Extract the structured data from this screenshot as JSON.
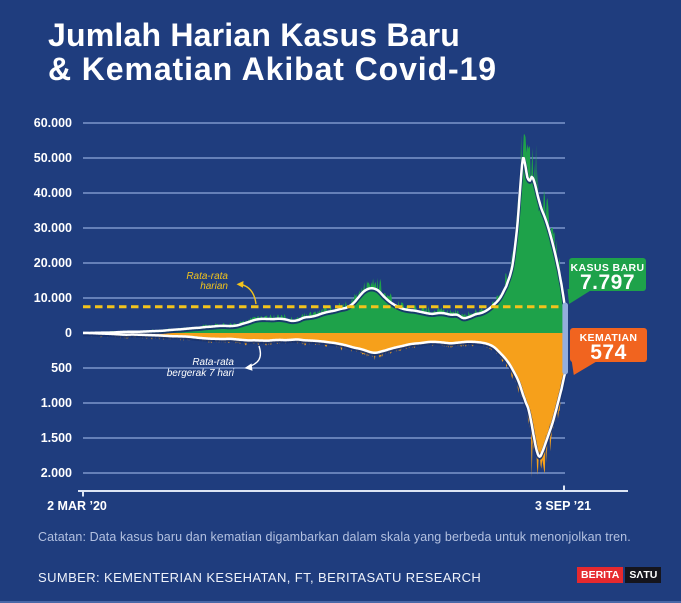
{
  "title": {
    "line1": "Jumlah Harian Kasus Baru",
    "line2": "& Kematian Akibat Covid-19"
  },
  "note": "Catatan: Data kasus baru dan kematian digambarkan dalam skala yang berbeda untuk menonjolkan tren.",
  "source": "SUMBER: KEMENTERIAN KESEHATAN, FT, BERITASATU RESEARCH",
  "logo": {
    "part1": "BERITA",
    "part2": "SΛTU"
  },
  "chart_data": {
    "type": "area",
    "x_axis": {
      "start_label": "2 MAR ’20",
      "end_label": "3 SEP ’21",
      "days": 550
    },
    "zero_label": "0",
    "colors": {
      "background": "#1f3d7e",
      "grid": "#8fa9da",
      "avg_line": "#ffffff",
      "line_shadow": "#16316e",
      "dashed": "#f2c31c",
      "marker_bar": "#93aedd"
    },
    "daily_average": {
      "value": 7500,
      "label_line1": "Rata-rata",
      "label_line2": "harian"
    },
    "moving_average_label": {
      "line1": "Rata-rata",
      "line2": "bergerak 7 hari"
    },
    "cases": {
      "label": "KASUS BARU",
      "final_display": "7.797",
      "final_value": 7797,
      "color": "#1ea24a",
      "box_color": "#1ea24a",
      "axis_max": 60000,
      "axis_ticks": [
        {
          "v": 60000,
          "label": "60.000"
        },
        {
          "v": 50000,
          "label": "50.000"
        },
        {
          "v": 40000,
          "label": "40.000"
        },
        {
          "v": 30000,
          "label": "30.000"
        },
        {
          "v": 20000,
          "label": "20.000"
        },
        {
          "v": 10000,
          "label": "10.000"
        }
      ],
      "record_daily": {
        "day": 500,
        "value": 56757
      },
      "avg_points": [
        [
          0,
          2
        ],
        [
          7,
          12
        ],
        [
          14,
          60
        ],
        [
          21,
          95
        ],
        [
          28,
          110
        ],
        [
          35,
          160
        ],
        [
          42,
          260
        ],
        [
          49,
          330
        ],
        [
          56,
          335
        ],
        [
          63,
          355
        ],
        [
          70,
          430
        ],
        [
          77,
          510
        ],
        [
          84,
          570
        ],
        [
          91,
          640
        ],
        [
          98,
          820
        ],
        [
          105,
          960
        ],
        [
          112,
          1060
        ],
        [
          119,
          1260
        ],
        [
          126,
          1420
        ],
        [
          133,
          1520
        ],
        [
          140,
          1720
        ],
        [
          147,
          1820
        ],
        [
          154,
          1960
        ],
        [
          161,
          2060
        ],
        [
          168,
          2010
        ],
        [
          175,
          2160
        ],
        [
          182,
          2620
        ],
        [
          189,
          3120
        ],
        [
          196,
          3720
        ],
        [
          203,
          4020
        ],
        [
          210,
          4060
        ],
        [
          217,
          3920
        ],
        [
          224,
          4010
        ],
        [
          231,
          3820
        ],
        [
          238,
          3420
        ],
        [
          245,
          3620
        ],
        [
          252,
          4320
        ],
        [
          259,
          4620
        ],
        [
          266,
          5020
        ],
        [
          273,
          5620
        ],
        [
          280,
          6120
        ],
        [
          287,
          6520
        ],
        [
          294,
          6920
        ],
        [
          301,
          7320
        ],
        [
          308,
          8520
        ],
        [
          315,
          10320
        ],
        [
          322,
          12020
        ],
        [
          329,
          12820
        ],
        [
          336,
          12220
        ],
        [
          343,
          10420
        ],
        [
          350,
          8920
        ],
        [
          357,
          7820
        ],
        [
          364,
          7020
        ],
        [
          371,
          6620
        ],
        [
          378,
          6420
        ],
        [
          385,
          6020
        ],
        [
          392,
          5720
        ],
        [
          399,
          5520
        ],
        [
          406,
          5620
        ],
        [
          413,
          5620
        ],
        [
          420,
          5320
        ],
        [
          427,
          5120
        ],
        [
          434,
          4220
        ],
        [
          441,
          4620
        ],
        [
          448,
          5320
        ],
        [
          455,
          5720
        ],
        [
          462,
          6620
        ],
        [
          469,
          8120
        ],
        [
          476,
          10120
        ],
        [
          483,
          13620
        ],
        [
          487,
          16500
        ],
        [
          490,
          19500
        ],
        [
          493,
          25000
        ],
        [
          496,
          32000
        ],
        [
          499,
          42000
        ],
        [
          502,
          50000
        ],
        [
          505,
          47500
        ],
        [
          507,
          44500
        ],
        [
          510,
          43500
        ],
        [
          512,
          44500
        ],
        [
          515,
          43000
        ],
        [
          519,
          39000
        ],
        [
          523,
          35500
        ],
        [
          527,
          33000
        ],
        [
          531,
          30000
        ],
        [
          535,
          26500
        ],
        [
          539,
          22500
        ],
        [
          543,
          18000
        ],
        [
          546,
          14000
        ],
        [
          548,
          10800
        ],
        [
          550,
          7797
        ]
      ]
    },
    "deaths": {
      "label": "KEMATIAN",
      "final_display": "574",
      "final_value": 574,
      "color": "#f6a01b",
      "box_color": "#f1641f",
      "axis_max": 2000,
      "axis_ticks": [
        {
          "v": 500,
          "label": "500"
        },
        {
          "v": 1000,
          "label": "1.000"
        },
        {
          "v": 1500,
          "label": "1.500"
        },
        {
          "v": 2000,
          "label": "2.000"
        }
      ],
      "record_daily": {
        "day": 512,
        "value": 2069
      },
      "avg_points": [
        [
          0,
          0
        ],
        [
          7,
          1
        ],
        [
          14,
          4
        ],
        [
          21,
          8
        ],
        [
          28,
          11
        ],
        [
          35,
          15
        ],
        [
          42,
          20
        ],
        [
          49,
          24
        ],
        [
          56,
          22
        ],
        [
          63,
          24
        ],
        [
          70,
          27
        ],
        [
          77,
          30
        ],
        [
          84,
          33
        ],
        [
          91,
          37
        ],
        [
          98,
          43
        ],
        [
          105,
          47
        ],
        [
          112,
          49
        ],
        [
          119,
          53
        ],
        [
          126,
          61
        ],
        [
          133,
          69
        ],
        [
          140,
          76
        ],
        [
          147,
          81
        ],
        [
          154,
          83
        ],
        [
          161,
          87
        ],
        [
          168,
          85
        ],
        [
          175,
          91
        ],
        [
          182,
          99
        ],
        [
          189,
          105
        ],
        [
          196,
          103
        ],
        [
          203,
          107
        ],
        [
          210,
          111
        ],
        [
          217,
          103
        ],
        [
          224,
          99
        ],
        [
          231,
          101
        ],
        [
          238,
          97
        ],
        [
          245,
          93
        ],
        [
          252,
          101
        ],
        [
          259,
          107
        ],
        [
          266,
          113
        ],
        [
          273,
          123
        ],
        [
          280,
          133
        ],
        [
          287,
          143
        ],
        [
          294,
          159
        ],
        [
          301,
          179
        ],
        [
          308,
          206
        ],
        [
          315,
          226
        ],
        [
          322,
          251
        ],
        [
          329,
          273
        ],
        [
          336,
          281
        ],
        [
          343,
          261
        ],
        [
          350,
          231
        ],
        [
          357,
          206
        ],
        [
          364,
          186
        ],
        [
          371,
          166
        ],
        [
          378,
          151
        ],
        [
          385,
          141
        ],
        [
          392,
          133
        ],
        [
          399,
          129
        ],
        [
          406,
          131
        ],
        [
          413,
          139
        ],
        [
          420,
          146
        ],
        [
          427,
          139
        ],
        [
          434,
          131
        ],
        [
          441,
          127
        ],
        [
          448,
          131
        ],
        [
          455,
          141
        ],
        [
          462,
          161
        ],
        [
          469,
          206
        ],
        [
          476,
          291
        ],
        [
          483,
          391
        ],
        [
          490,
          520
        ],
        [
          497,
          690
        ],
        [
          504,
          950
        ],
        [
          508,
          1080
        ],
        [
          511,
          1250
        ],
        [
          515,
          1520
        ],
        [
          518,
          1700
        ],
        [
          521,
          1770
        ],
        [
          524,
          1700
        ],
        [
          528,
          1560
        ],
        [
          532,
          1420
        ],
        [
          536,
          1280
        ],
        [
          540,
          1100
        ],
        [
          543,
          950
        ],
        [
          546,
          800
        ],
        [
          548,
          680
        ],
        [
          550,
          574
        ]
      ]
    }
  }
}
